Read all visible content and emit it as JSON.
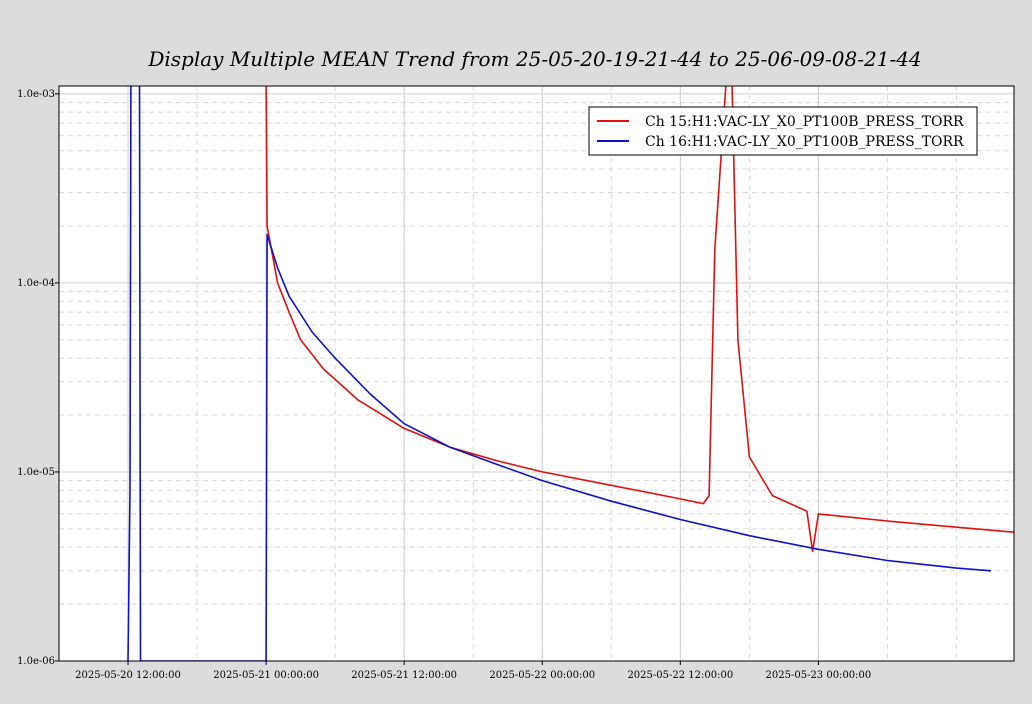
{
  "chart_data": {
    "type": "line",
    "title": "Display Multiple MEAN Trend from 25-05-20-19-21-44 to 25-06-09-08-21-44",
    "xlabel": "",
    "ylabel": "",
    "y_scale": "log",
    "ylim": [
      1e-06,
      0.0011
    ],
    "y_ticks": [
      "1.0e-06",
      "1.0e-05",
      "1.0e-04",
      "1.0e-03"
    ],
    "y_tick_values": [
      1e-06,
      1e-05,
      0.0001,
      0.001
    ],
    "xlim": [
      "2025-05-20 06:00:00",
      "2025-05-23 17:00:00"
    ],
    "x_ticks": [
      "2025-05-20 12:00:00",
      "2025-05-21 00:00:00",
      "2025-05-21 12:00:00",
      "2025-05-22 00:00:00",
      "2025-05-22 12:00:00",
      "2025-05-23 00:00:00"
    ],
    "grid": true,
    "legend_position": "top-right",
    "series": [
      {
        "name": "Ch 15:H1:VAC-LY_X0_PT100B_PRESS_TORR",
        "color": "#e01010",
        "points": [
          [
            "2025-05-21 00:00:00",
            0.0012
          ],
          [
            "2025-05-21 00:05:00",
            0.0002
          ],
          [
            "2025-05-21 01:00:00",
            0.0001
          ],
          [
            "2025-05-21 02:00:00",
            7e-05
          ],
          [
            "2025-05-21 03:00:00",
            5e-05
          ],
          [
            "2025-05-21 05:00:00",
            3.5e-05
          ],
          [
            "2025-05-21 08:00:00",
            2.4e-05
          ],
          [
            "2025-05-21 12:00:00",
            1.7e-05
          ],
          [
            "2025-05-21 16:00:00",
            1.35e-05
          ],
          [
            "2025-05-21 20:00:00",
            1.15e-05
          ],
          [
            "2025-05-22 00:00:00",
            1e-05
          ],
          [
            "2025-05-22 06:00:00",
            8.5e-06
          ],
          [
            "2025-05-22 12:00:00",
            7.2e-06
          ],
          [
            "2025-05-22 14:00:00",
            6.8e-06
          ],
          [
            "2025-05-22 14:30:00",
            7.5e-06
          ],
          [
            "2025-05-22 15:00:00",
            0.00015
          ],
          [
            "2025-05-22 16:00:00",
            0.0012
          ],
          [
            "2025-05-22 16:30:00",
            0.0011
          ],
          [
            "2025-05-22 17:00:00",
            5e-05
          ],
          [
            "2025-05-22 18:00:00",
            1.2e-05
          ],
          [
            "2025-05-22 20:00:00",
            7.5e-06
          ],
          [
            "2025-05-22 23:00:00",
            6.2e-06
          ],
          [
            "2025-05-22 23:30:00",
            3.8e-06
          ],
          [
            "2025-05-23 00:00:00",
            6e-06
          ],
          [
            "2025-05-23 06:00:00",
            5.5e-06
          ],
          [
            "2025-05-23 12:00:00",
            5.1e-06
          ],
          [
            "2025-05-23 17:00:00",
            4.8e-06
          ]
        ]
      },
      {
        "name": "Ch 16:H1:VAC-LY_X0_PT100B_PRESS_TORR",
        "color": "#1010c8",
        "points": [
          [
            "2025-05-20 12:00:00",
            1e-06
          ],
          [
            "2025-05-20 12:10:00",
            8e-06
          ],
          [
            "2025-05-20 12:15:00",
            0.0012
          ],
          [
            "2025-05-20 13:00:00",
            0.0012
          ],
          [
            "2025-05-20 13:05:00",
            1e-06
          ],
          [
            "2025-05-21 00:00:00",
            1e-06
          ],
          [
            "2025-05-21 00:05:00",
            0.00018
          ],
          [
            "2025-05-21 01:00:00",
            0.00012
          ],
          [
            "2025-05-21 02:00:00",
            8.5e-05
          ],
          [
            "2025-05-21 04:00:00",
            5.5e-05
          ],
          [
            "2025-05-21 06:00:00",
            4e-05
          ],
          [
            "2025-05-21 09:00:00",
            2.6e-05
          ],
          [
            "2025-05-21 12:00:00",
            1.8e-05
          ],
          [
            "2025-05-21 16:00:00",
            1.35e-05
          ],
          [
            "2025-05-21 20:00:00",
            1.1e-05
          ],
          [
            "2025-05-22 00:00:00",
            9e-06
          ],
          [
            "2025-05-22 06:00:00",
            7e-06
          ],
          [
            "2025-05-22 12:00:00",
            5.6e-06
          ],
          [
            "2025-05-22 18:00:00",
            4.6e-06
          ],
          [
            "2025-05-23 00:00:00",
            3.9e-06
          ],
          [
            "2025-05-23 06:00:00",
            3.4e-06
          ],
          [
            "2025-05-23 12:00:00",
            3.1e-06
          ],
          [
            "2025-05-23 15:00:00",
            3e-06
          ]
        ]
      }
    ]
  }
}
